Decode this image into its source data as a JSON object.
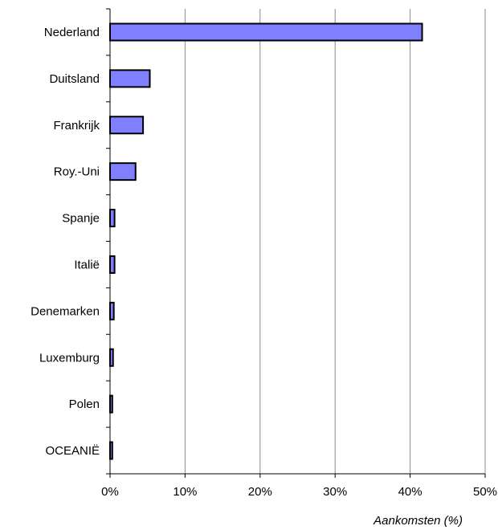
{
  "chart_data": {
    "type": "bar",
    "orientation": "horizontal",
    "categories": [
      "Nederland",
      "Duitsland",
      "Frankrijk",
      "Roy.-Uni",
      "Spanje",
      "Italië",
      "Denemarken",
      "Luxemburg",
      "Polen",
      "OCEANIË"
    ],
    "values": [
      41.6,
      5.3,
      4.4,
      3.4,
      0.6,
      0.6,
      0.5,
      0.4,
      0.3,
      0.3
    ],
    "xlabel": "Aankomsten (%)",
    "ylabel": "",
    "xlim": [
      0,
      50
    ],
    "x_ticks": [
      "0%",
      "10%",
      "20%",
      "30%",
      "40%",
      "50%"
    ],
    "grid": "vertical",
    "bar_color": "#8080ff",
    "bar_edge_color": "#000000"
  }
}
